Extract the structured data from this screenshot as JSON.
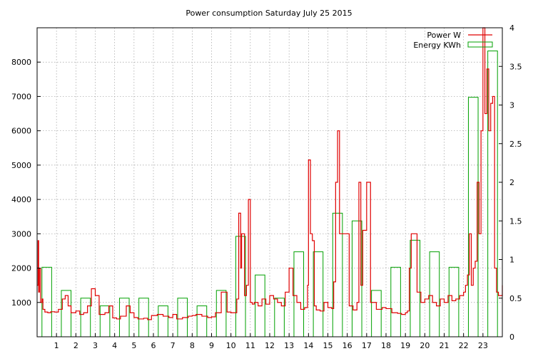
{
  "chart_data": {
    "type": "bar",
    "title": "Power consumption Saturday July 25 2015",
    "xlabel": "",
    "ylabel": "",
    "grid": true,
    "legend_position": "top-right",
    "x_ticks": [
      "1",
      "2",
      "3",
      "4",
      "5",
      "6",
      "7",
      "8",
      "9",
      "10",
      "11",
      "12",
      "13",
      "14",
      "15",
      "16",
      "17",
      "18",
      "19",
      "20",
      "21",
      "22",
      "23"
    ],
    "xlim": [
      0,
      24
    ],
    "ylim_left": [
      0,
      9000
    ],
    "ylim_right": [
      0,
      4
    ],
    "y_ticks_left": [
      "1000",
      "2000",
      "3000",
      "4000",
      "5000",
      "6000",
      "7000",
      "8000"
    ],
    "y_ticks_right": [
      "0",
      "0.5",
      "1",
      "1.5",
      "2",
      "2.5",
      "3",
      "3.5",
      "4"
    ],
    "series": [
      {
        "name": "Power W",
        "axis": "left",
        "color": "#e00000",
        "style": "line",
        "x": [
          0,
          0.05,
          0.08,
          0.12,
          0.18,
          0.25,
          0.3,
          0.4,
          0.55,
          0.7,
          0.9,
          1.1,
          1.3,
          1.45,
          1.6,
          1.75,
          2.0,
          2.2,
          2.4,
          2.6,
          2.8,
          3.0,
          3.2,
          3.5,
          3.7,
          3.9,
          4.1,
          4.3,
          4.6,
          4.8,
          5.0,
          5.2,
          5.5,
          5.7,
          5.9,
          6.2,
          6.5,
          6.8,
          7.0,
          7.2,
          7.5,
          7.8,
          8.0,
          8.2,
          8.5,
          8.8,
          9.0,
          9.2,
          9.5,
          9.8,
          10.0,
          10.3,
          10.4,
          10.5,
          10.55,
          10.6,
          10.7,
          10.8,
          10.9,
          11.0,
          11.1,
          11.2,
          11.4,
          11.6,
          11.8,
          12.0,
          12.2,
          12.4,
          12.6,
          12.8,
          13.0,
          13.2,
          13.4,
          13.6,
          13.8,
          13.95,
          14.0,
          14.1,
          14.2,
          14.3,
          14.4,
          14.6,
          14.8,
          15.0,
          15.2,
          15.3,
          15.4,
          15.5,
          15.6,
          15.7,
          15.8,
          16.0,
          16.1,
          16.3,
          16.5,
          16.6,
          16.7,
          16.8,
          17.0,
          17.2,
          17.5,
          17.8,
          18.0,
          18.3,
          18.6,
          18.8,
          19.0,
          19.1,
          19.2,
          19.3,
          19.4,
          19.6,
          19.8,
          20.0,
          20.2,
          20.4,
          20.6,
          20.8,
          21.0,
          21.2,
          21.4,
          21.6,
          21.8,
          22.0,
          22.1,
          22.2,
          22.3,
          22.4,
          22.5,
          22.6,
          22.7,
          22.8,
          22.9,
          23.0,
          23.1,
          23.2,
          23.3,
          23.4,
          23.5,
          23.6,
          23.7,
          23.8,
          24.0
        ],
        "values": [
          1500,
          2800,
          1300,
          2000,
          1000,
          1100,
          800,
          720,
          700,
          730,
          720,
          800,
          1100,
          1200,
          900,
          700,
          750,
          650,
          700,
          900,
          1400,
          1200,
          650,
          700,
          900,
          550,
          520,
          600,
          900,
          700,
          560,
          520,
          540,
          500,
          620,
          650,
          600,
          560,
          650,
          520,
          560,
          600,
          620,
          650,
          600,
          560,
          580,
          700,
          1300,
          720,
          700,
          1100,
          3600,
          2000,
          3000,
          3000,
          1200,
          1500,
          4000,
          1000,
          950,
          1000,
          900,
          1100,
          950,
          1200,
          1100,
          1000,
          900,
          1300,
          2000,
          1200,
          1000,
          800,
          850,
          1500,
          5150,
          3000,
          2800,
          900,
          780,
          750,
          1000,
          850,
          820,
          1600,
          4500,
          6000,
          3000,
          3000,
          3000,
          3000,
          900,
          780,
          1000,
          4500,
          1500,
          3100,
          4500,
          1000,
          800,
          850,
          820,
          700,
          680,
          650,
          700,
          750,
          2000,
          3000,
          3000,
          1300,
          1000,
          1100,
          1200,
          1000,
          900,
          1100,
          1000,
          1200,
          1050,
          1100,
          1200,
          1300,
          1500,
          1800,
          3000,
          1500,
          2000,
          2200,
          4500,
          3000,
          6000,
          9000,
          6500,
          7800,
          6000,
          6800,
          7000,
          2000,
          1300,
          1200,
          1500
        ]
      },
      {
        "name": "Energy KWh",
        "axis": "right",
        "color": "#00a000",
        "style": "steps",
        "categories": [
          "0",
          "1",
          "2",
          "3",
          "4",
          "5",
          "6",
          "7",
          "8",
          "9",
          "10",
          "11",
          "12",
          "13",
          "14",
          "15",
          "16",
          "17",
          "18",
          "19",
          "20",
          "21",
          "22",
          "23"
        ],
        "values": [
          0.9,
          0.6,
          0.5,
          0.4,
          0.5,
          0.5,
          0.4,
          0.5,
          0.4,
          0.6,
          1.3,
          0.8,
          0.5,
          1.1,
          1.1,
          1.6,
          1.5,
          0.6,
          0.9,
          1.25,
          1.1,
          0.9,
          3.1,
          3.7
        ]
      }
    ]
  }
}
